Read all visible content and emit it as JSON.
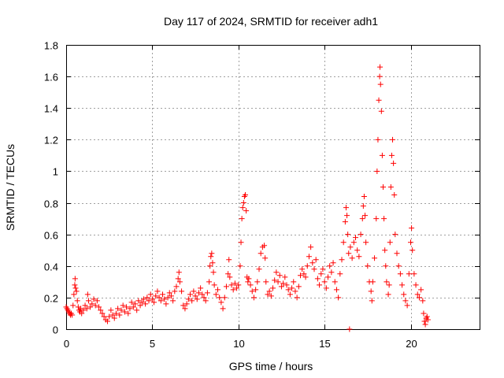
{
  "chart_data": {
    "type": "scatter",
    "title": "Day 117 of 2024, SRMTID for receiver adh1",
    "xlabel": "GPS time / hours",
    "ylabel": "SRMTID / TECUs",
    "xlim": [
      0,
      24
    ],
    "ylim": [
      0,
      1.8
    ],
    "x_ticks": [
      0,
      5,
      10,
      15,
      20
    ],
    "y_ticks": [
      0,
      0.2,
      0.4,
      0.6,
      0.8,
      1,
      1.2,
      1.4,
      1.6,
      1.8
    ],
    "x_tick_labels": [
      "0",
      "5",
      "10",
      "15",
      "20"
    ],
    "y_tick_labels": [
      "0",
      "0.2",
      "0.4",
      "0.6",
      "0.8",
      "1",
      "1.2",
      "1.4",
      "1.6",
      "1.8"
    ],
    "grid": true,
    "marker": "+",
    "marker_color": "#ff0000",
    "series": [
      {
        "name": "SRMTID",
        "points": [
          [
            0.0,
            0.14
          ],
          [
            0.05,
            0.13
          ],
          [
            0.1,
            0.12
          ],
          [
            0.15,
            0.11
          ],
          [
            0.2,
            0.1
          ],
          [
            0.25,
            0.09
          ],
          [
            0.3,
            0.1
          ],
          [
            0.35,
            0.09
          ],
          [
            0.4,
            0.15
          ],
          [
            0.45,
            0.22
          ],
          [
            0.5,
            0.28
          ],
          [
            0.52,
            0.32
          ],
          [
            0.55,
            0.26
          ],
          [
            0.6,
            0.24
          ],
          [
            0.65,
            0.18
          ],
          [
            0.7,
            0.14
          ],
          [
            0.75,
            0.12
          ],
          [
            0.8,
            0.11
          ],
          [
            0.85,
            0.13
          ],
          [
            0.9,
            0.1
          ],
          [
            1.0,
            0.12
          ],
          [
            1.1,
            0.15
          ],
          [
            1.2,
            0.13
          ],
          [
            1.25,
            0.22
          ],
          [
            1.3,
            0.18
          ],
          [
            1.4,
            0.14
          ],
          [
            1.5,
            0.16
          ],
          [
            1.6,
            0.19
          ],
          [
            1.7,
            0.15
          ],
          [
            1.8,
            0.18
          ],
          [
            1.9,
            0.14
          ],
          [
            2.0,
            0.12
          ],
          [
            2.1,
            0.1
          ],
          [
            2.2,
            0.08
          ],
          [
            2.3,
            0.06
          ],
          [
            2.4,
            0.05
          ],
          [
            2.5,
            0.08
          ],
          [
            2.6,
            0.12
          ],
          [
            2.7,
            0.09
          ],
          [
            2.8,
            0.07
          ],
          [
            2.9,
            0.1
          ],
          [
            3.0,
            0.13
          ],
          [
            3.1,
            0.09
          ],
          [
            3.2,
            0.12
          ],
          [
            3.3,
            0.15
          ],
          [
            3.4,
            0.11
          ],
          [
            3.5,
            0.14
          ],
          [
            3.6,
            0.1
          ],
          [
            3.7,
            0.13
          ],
          [
            3.8,
            0.17
          ],
          [
            3.9,
            0.14
          ],
          [
            4.0,
            0.16
          ],
          [
            4.1,
            0.12
          ],
          [
            4.2,
            0.18
          ],
          [
            4.3,
            0.15
          ],
          [
            4.4,
            0.17
          ],
          [
            4.5,
            0.19
          ],
          [
            4.6,
            0.16
          ],
          [
            4.7,
            0.2
          ],
          [
            4.8,
            0.18
          ],
          [
            4.9,
            0.22
          ],
          [
            5.0,
            0.19
          ],
          [
            5.1,
            0.17
          ],
          [
            5.2,
            0.21
          ],
          [
            5.3,
            0.24
          ],
          [
            5.4,
            0.2
          ],
          [
            5.5,
            0.18
          ],
          [
            5.6,
            0.22
          ],
          [
            5.7,
            0.19
          ],
          [
            5.8,
            0.16
          ],
          [
            5.9,
            0.2
          ],
          [
            6.0,
            0.23
          ],
          [
            6.1,
            0.21
          ],
          [
            6.2,
            0.18
          ],
          [
            6.3,
            0.24
          ],
          [
            6.4,
            0.27
          ],
          [
            6.5,
            0.32
          ],
          [
            6.55,
            0.36
          ],
          [
            6.6,
            0.3
          ],
          [
            6.7,
            0.24
          ],
          [
            6.8,
            0.15
          ],
          [
            6.9,
            0.13
          ],
          [
            7.0,
            0.16
          ],
          [
            7.1,
            0.19
          ],
          [
            7.2,
            0.22
          ],
          [
            7.3,
            0.18
          ],
          [
            7.4,
            0.24
          ],
          [
            7.5,
            0.21
          ],
          [
            7.6,
            0.19
          ],
          [
            7.7,
            0.23
          ],
          [
            7.8,
            0.26
          ],
          [
            7.9,
            0.22
          ],
          [
            8.0,
            0.2
          ],
          [
            8.1,
            0.18
          ],
          [
            8.2,
            0.23
          ],
          [
            8.3,
            0.3
          ],
          [
            8.35,
            0.4
          ],
          [
            8.4,
            0.46
          ],
          [
            8.45,
            0.48
          ],
          [
            8.5,
            0.42
          ],
          [
            8.55,
            0.36
          ],
          [
            8.6,
            0.28
          ],
          [
            8.7,
            0.22
          ],
          [
            8.8,
            0.25
          ],
          [
            8.9,
            0.2
          ],
          [
            9.0,
            0.17
          ],
          [
            9.1,
            0.13
          ],
          [
            9.2,
            0.2
          ],
          [
            9.3,
            0.27
          ],
          [
            9.4,
            0.35
          ],
          [
            9.45,
            0.44
          ],
          [
            9.5,
            0.33
          ],
          [
            9.6,
            0.28
          ],
          [
            9.7,
            0.25
          ],
          [
            9.8,
            0.29
          ],
          [
            9.9,
            0.26
          ],
          [
            10.0,
            0.28
          ],
          [
            10.1,
            0.4
          ],
          [
            10.15,
            0.55
          ],
          [
            10.2,
            0.7
          ],
          [
            10.25,
            0.77
          ],
          [
            10.3,
            0.8
          ],
          [
            10.35,
            0.84
          ],
          [
            10.4,
            0.85
          ],
          [
            10.45,
            0.75
          ],
          [
            10.5,
            0.33
          ],
          [
            10.55,
            0.3
          ],
          [
            10.6,
            0.32
          ],
          [
            10.7,
            0.28
          ],
          [
            10.8,
            0.24
          ],
          [
            10.9,
            0.2
          ],
          [
            11.0,
            0.25
          ],
          [
            11.1,
            0.3
          ],
          [
            11.2,
            0.38
          ],
          [
            11.3,
            0.48
          ],
          [
            11.4,
            0.52
          ],
          [
            11.5,
            0.53
          ],
          [
            11.55,
            0.45
          ],
          [
            11.6,
            0.3
          ],
          [
            11.7,
            0.22
          ],
          [
            11.8,
            0.24
          ],
          [
            11.9,
            0.21
          ],
          [
            12.0,
            0.26
          ],
          [
            12.1,
            0.31
          ],
          [
            12.2,
            0.36
          ],
          [
            12.3,
            0.3
          ],
          [
            12.4,
            0.34
          ],
          [
            12.5,
            0.27
          ],
          [
            12.6,
            0.29
          ],
          [
            12.7,
            0.33
          ],
          [
            12.8,
            0.28
          ],
          [
            12.9,
            0.25
          ],
          [
            13.0,
            0.22
          ],
          [
            13.1,
            0.26
          ],
          [
            13.2,
            0.3
          ],
          [
            13.3,
            0.24
          ],
          [
            13.4,
            0.2
          ],
          [
            13.5,
            0.27
          ],
          [
            13.6,
            0.34
          ],
          [
            13.7,
            0.38
          ],
          [
            13.8,
            0.35
          ],
          [
            13.9,
            0.33
          ],
          [
            14.0,
            0.4
          ],
          [
            14.1,
            0.46
          ],
          [
            14.2,
            0.52
          ],
          [
            14.3,
            0.42
          ],
          [
            14.4,
            0.38
          ],
          [
            14.5,
            0.44
          ],
          [
            14.6,
            0.32
          ],
          [
            14.7,
            0.28
          ],
          [
            14.8,
            0.35
          ],
          [
            14.9,
            0.38
          ],
          [
            15.0,
            0.3
          ],
          [
            15.1,
            0.26
          ],
          [
            15.2,
            0.33
          ],
          [
            15.3,
            0.4
          ],
          [
            15.4,
            0.36
          ],
          [
            15.5,
            0.42
          ],
          [
            15.6,
            0.3
          ],
          [
            15.7,
            0.25
          ],
          [
            15.8,
            0.2
          ],
          [
            15.9,
            0.35
          ],
          [
            16.0,
            0.44
          ],
          [
            16.1,
            0.55
          ],
          [
            16.2,
            0.68
          ],
          [
            16.25,
            0.77
          ],
          [
            16.3,
            0.72
          ],
          [
            16.35,
            0.6
          ],
          [
            16.4,
            0.48
          ],
          [
            16.45,
            0.0
          ],
          [
            16.5,
            0.52
          ],
          [
            16.6,
            0.45
          ],
          [
            16.7,
            0.55
          ],
          [
            16.8,
            0.58
          ],
          [
            16.9,
            0.5
          ],
          [
            17.0,
            0.46
          ],
          [
            17.1,
            0.6
          ],
          [
            17.2,
            0.7
          ],
          [
            17.25,
            0.78
          ],
          [
            17.3,
            0.84
          ],
          [
            17.35,
            0.72
          ],
          [
            17.4,
            0.55
          ],
          [
            17.5,
            0.4
          ],
          [
            17.6,
            0.3
          ],
          [
            17.7,
            0.24
          ],
          [
            17.75,
            0.18
          ],
          [
            17.8,
            0.3
          ],
          [
            17.9,
            0.45
          ],
          [
            18.0,
            0.7
          ],
          [
            18.05,
            1.0
          ],
          [
            18.1,
            1.2
          ],
          [
            18.15,
            1.45
          ],
          [
            18.2,
            1.6
          ],
          [
            18.22,
            1.66
          ],
          [
            18.25,
            1.55
          ],
          [
            18.3,
            1.38
          ],
          [
            18.35,
            1.1
          ],
          [
            18.4,
            0.9
          ],
          [
            18.45,
            0.7
          ],
          [
            18.5,
            0.5
          ],
          [
            18.55,
            0.4
          ],
          [
            18.6,
            0.3
          ],
          [
            18.7,
            0.22
          ],
          [
            18.75,
            0.28
          ],
          [
            18.8,
            0.55
          ],
          [
            18.85,
            0.9
          ],
          [
            18.9,
            1.1
          ],
          [
            18.95,
            1.2
          ],
          [
            19.0,
            1.05
          ],
          [
            19.05,
            0.85
          ],
          [
            19.1,
            0.6
          ],
          [
            19.2,
            0.48
          ],
          [
            19.3,
            0.4
          ],
          [
            19.4,
            0.35
          ],
          [
            19.5,
            0.28
          ],
          [
            19.6,
            0.22
          ],
          [
            19.7,
            0.18
          ],
          [
            19.8,
            0.15
          ],
          [
            19.9,
            0.35
          ],
          [
            20.0,
            0.55
          ],
          [
            20.05,
            0.64
          ],
          [
            20.1,
            0.5
          ],
          [
            20.2,
            0.35
          ],
          [
            20.3,
            0.28
          ],
          [
            20.4,
            0.22
          ],
          [
            20.5,
            0.2
          ],
          [
            20.6,
            0.25
          ],
          [
            20.7,
            0.18
          ],
          [
            20.75,
            0.1
          ],
          [
            20.8,
            0.05
          ],
          [
            20.85,
            0.03
          ],
          [
            20.9,
            0.07
          ],
          [
            20.95,
            0.08
          ],
          [
            21.0,
            0.06
          ]
        ]
      }
    ]
  }
}
